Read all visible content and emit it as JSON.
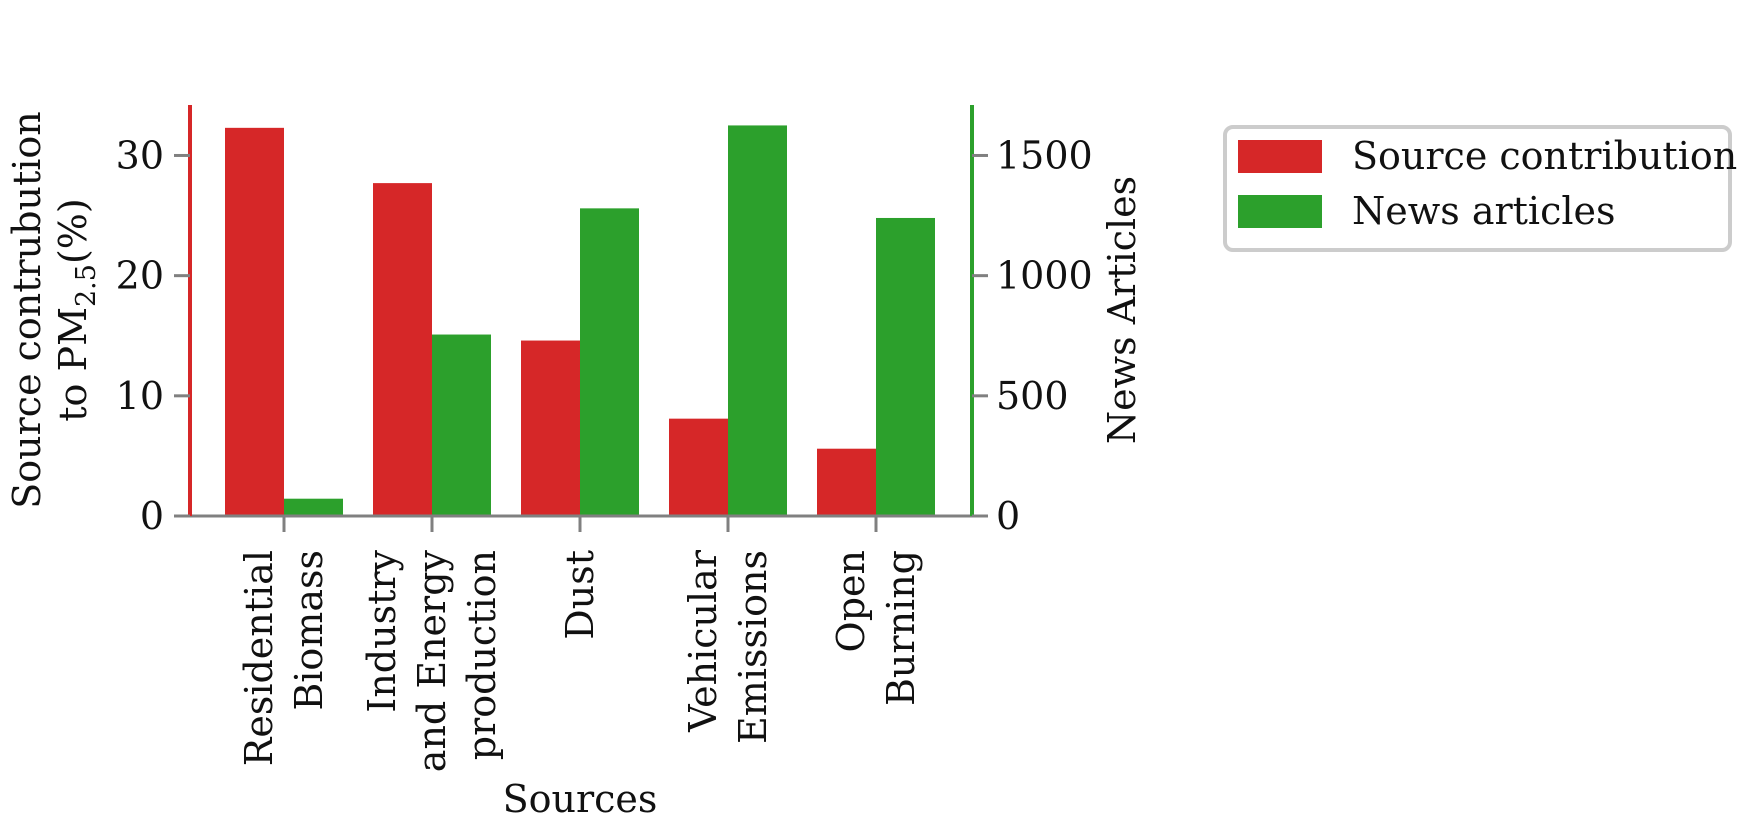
{
  "chart_data": {
    "type": "bar",
    "title": "",
    "xlabel": "Sources",
    "ylabel_left": "Source contrubution to PM2.5(%)",
    "ylabel_left_parts": {
      "line1": "Source contrubution",
      "line2_pre": "to PM",
      "line2_sub": "2.5",
      "line2_post": "(%)"
    },
    "ylabel_right": "News Articles",
    "categories": [
      {
        "lines": [
          "Residential",
          "Biomass"
        ]
      },
      {
        "lines": [
          "Industry",
          "and Energy",
          "production"
        ]
      },
      {
        "lines": [
          "Dust"
        ]
      },
      {
        "lines": [
          "Vehicular",
          "Emissions"
        ]
      },
      {
        "lines": [
          "Open",
          "Burning"
        ]
      }
    ],
    "series": [
      {
        "name": "Source contribution",
        "axis": "left",
        "color": "#d62728",
        "values": [
          32.3,
          27.7,
          14.6,
          8.1,
          5.6
        ]
      },
      {
        "name": "News articles",
        "axis": "right",
        "color": "#2ca02c",
        "values": [
          72,
          755,
          1280,
          1625,
          1240
        ]
      }
    ],
    "ylim_left": [
      0,
      34.2
    ],
    "ylim_right": [
      0,
      1710
    ],
    "yticks_left": [
      0,
      10,
      20,
      30
    ],
    "yticks_right": [
      0,
      500,
      1000,
      1500
    ],
    "grid": false,
    "legend_placement": "outside-right-top",
    "spine_colors": {
      "left": "#d62728",
      "right": "#2ca02c",
      "axis": "#808080"
    }
  }
}
